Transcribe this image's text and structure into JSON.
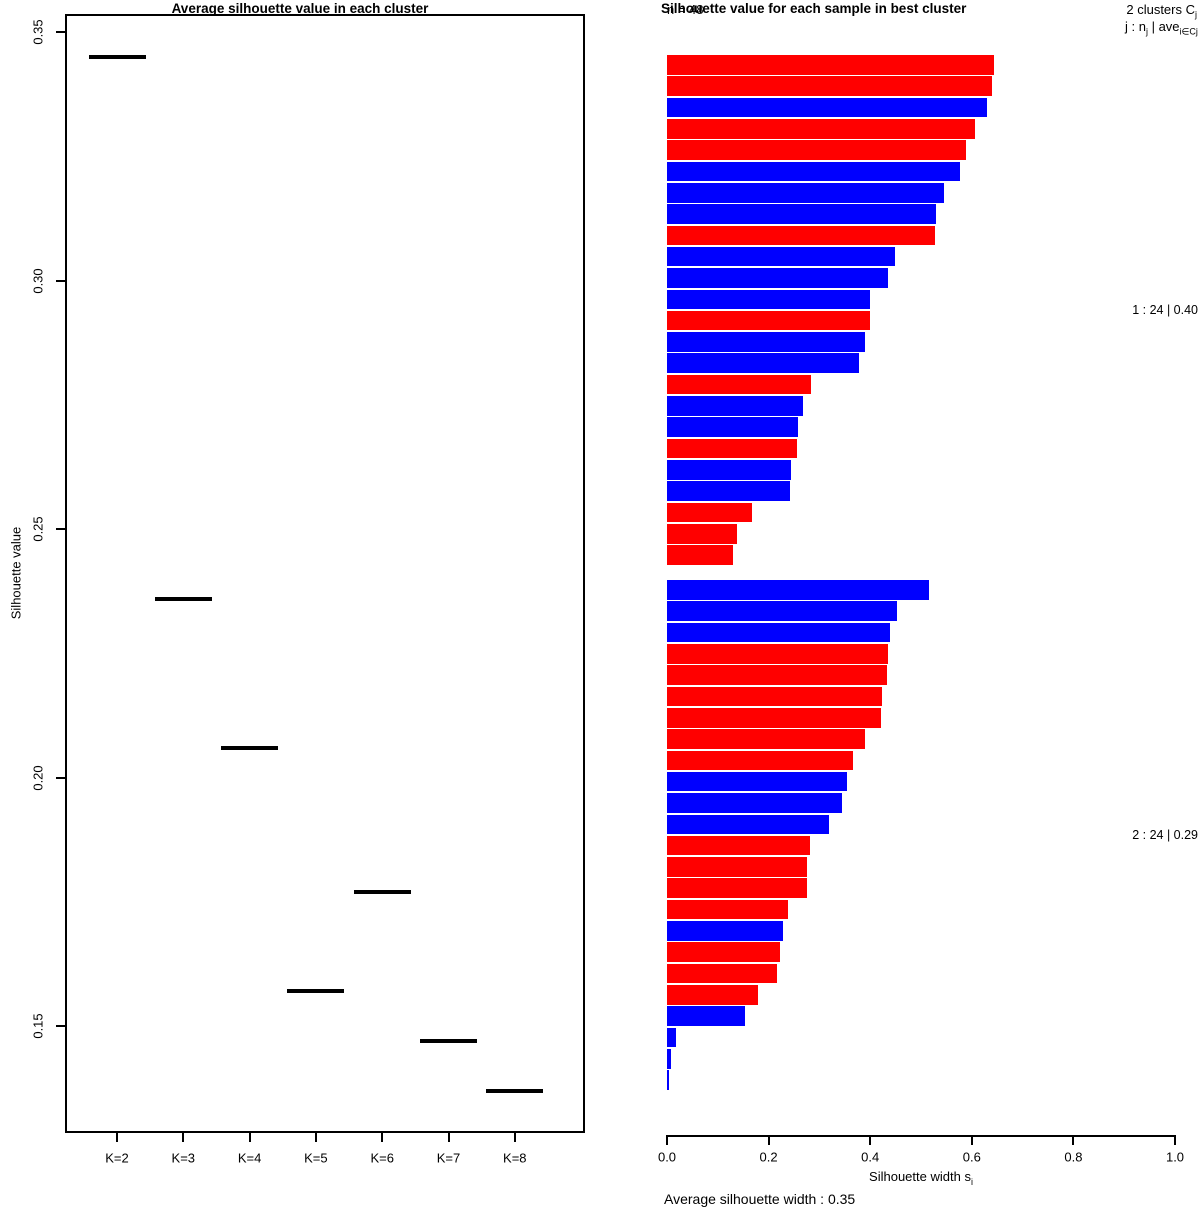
{
  "colors": {
    "red": "#FF0000",
    "blue": "#0000FF",
    "axis": "#000000",
    "background": "#FFFFFF"
  },
  "chart_data": [
    {
      "id": "avg-silhouette-by-k",
      "type": "scatter",
      "marker": "horizontal-segment",
      "title": "Average silhouette value in each cluster",
      "ylabel": "Silhouette value",
      "xlabel": "",
      "categories": [
        "K=2",
        "K=3",
        "K=4",
        "K=5",
        "K=6",
        "K=7",
        "K=8"
      ],
      "values": [
        0.345,
        0.236,
        0.206,
        0.157,
        0.177,
        0.147,
        0.137
      ],
      "y_ticks": [
        0.35,
        0.3,
        0.25,
        0.2,
        0.15
      ],
      "ylim": [
        0.128,
        0.352
      ],
      "grid": false,
      "legend_position": "none"
    },
    {
      "id": "silhouette-per-sample",
      "type": "bar",
      "orientation": "horizontal",
      "title": "Silhouette value for each sample in best cluster",
      "n_label": "n = 48",
      "legend_line1": "2 clusters Cj",
      "legend_line2": "j :  nj | avei∈Cj si",
      "legend_line1_parts": [
        {
          "t": "2 clusters C"
        },
        {
          "t": "j",
          "sub": true
        }
      ],
      "legend_line2_parts": [
        {
          "t": "j :  n"
        },
        {
          "t": "j",
          "sub": true
        },
        {
          "t": " | ave"
        },
        {
          "t": "i∈Cj",
          "sub": true
        },
        {
          "t": " s"
        },
        {
          "t": "i",
          "sub": true
        }
      ],
      "xlabel": "Silhouette width si",
      "xlabel_parts": [
        {
          "t": "Silhouette width s"
        },
        {
          "t": "i",
          "sub": true
        }
      ],
      "x_ticks": [
        "0.0",
        "0.2",
        "0.4",
        "0.6",
        "0.8",
        "1.0"
      ],
      "xlim": [
        0,
        1
      ],
      "sub": "Average silhouette width : 0.35",
      "grid": false,
      "clusters": [
        {
          "cluster": "1",
          "n": "24",
          "avg": "0.40",
          "label": "1 :  24  |  0.40",
          "bars": [
            {
              "value": 0.643,
              "color": "red"
            },
            {
              "value": 0.64,
              "color": "red"
            },
            {
              "value": 0.629,
              "color": "blue"
            },
            {
              "value": 0.606,
              "color": "red"
            },
            {
              "value": 0.589,
              "color": "red"
            },
            {
              "value": 0.577,
              "color": "blue"
            },
            {
              "value": 0.545,
              "color": "blue"
            },
            {
              "value": 0.53,
              "color": "blue"
            },
            {
              "value": 0.528,
              "color": "red"
            },
            {
              "value": 0.449,
              "color": "blue"
            },
            {
              "value": 0.435,
              "color": "blue"
            },
            {
              "value": 0.4,
              "color": "blue"
            },
            {
              "value": 0.4,
              "color": "red"
            },
            {
              "value": 0.39,
              "color": "blue"
            },
            {
              "value": 0.377,
              "color": "blue"
            },
            {
              "value": 0.284,
              "color": "red"
            },
            {
              "value": 0.268,
              "color": "blue"
            },
            {
              "value": 0.258,
              "color": "blue"
            },
            {
              "value": 0.256,
              "color": "red"
            },
            {
              "value": 0.244,
              "color": "blue"
            },
            {
              "value": 0.242,
              "color": "blue"
            },
            {
              "value": 0.167,
              "color": "red"
            },
            {
              "value": 0.138,
              "color": "red"
            },
            {
              "value": 0.13,
              "color": "red"
            }
          ]
        },
        {
          "cluster": "2",
          "n": "24",
          "avg": "0.29",
          "label": "2 :  24  |  0.29",
          "bars": [
            {
              "value": 0.515,
              "color": "blue"
            },
            {
              "value": 0.453,
              "color": "blue"
            },
            {
              "value": 0.438,
              "color": "blue"
            },
            {
              "value": 0.435,
              "color": "red"
            },
            {
              "value": 0.434,
              "color": "red"
            },
            {
              "value": 0.423,
              "color": "red"
            },
            {
              "value": 0.421,
              "color": "red"
            },
            {
              "value": 0.39,
              "color": "red"
            },
            {
              "value": 0.366,
              "color": "red"
            },
            {
              "value": 0.354,
              "color": "blue"
            },
            {
              "value": 0.344,
              "color": "blue"
            },
            {
              "value": 0.318,
              "color": "blue"
            },
            {
              "value": 0.281,
              "color": "red"
            },
            {
              "value": 0.276,
              "color": "red"
            },
            {
              "value": 0.275,
              "color": "red"
            },
            {
              "value": 0.238,
              "color": "red"
            },
            {
              "value": 0.228,
              "color": "blue"
            },
            {
              "value": 0.222,
              "color": "red"
            },
            {
              "value": 0.217,
              "color": "red"
            },
            {
              "value": 0.18,
              "color": "red"
            },
            {
              "value": 0.154,
              "color": "blue"
            },
            {
              "value": 0.017,
              "color": "blue"
            },
            {
              "value": 0.007,
              "color": "blue"
            },
            {
              "value": 0.003,
              "color": "blue"
            }
          ]
        }
      ]
    }
  ]
}
